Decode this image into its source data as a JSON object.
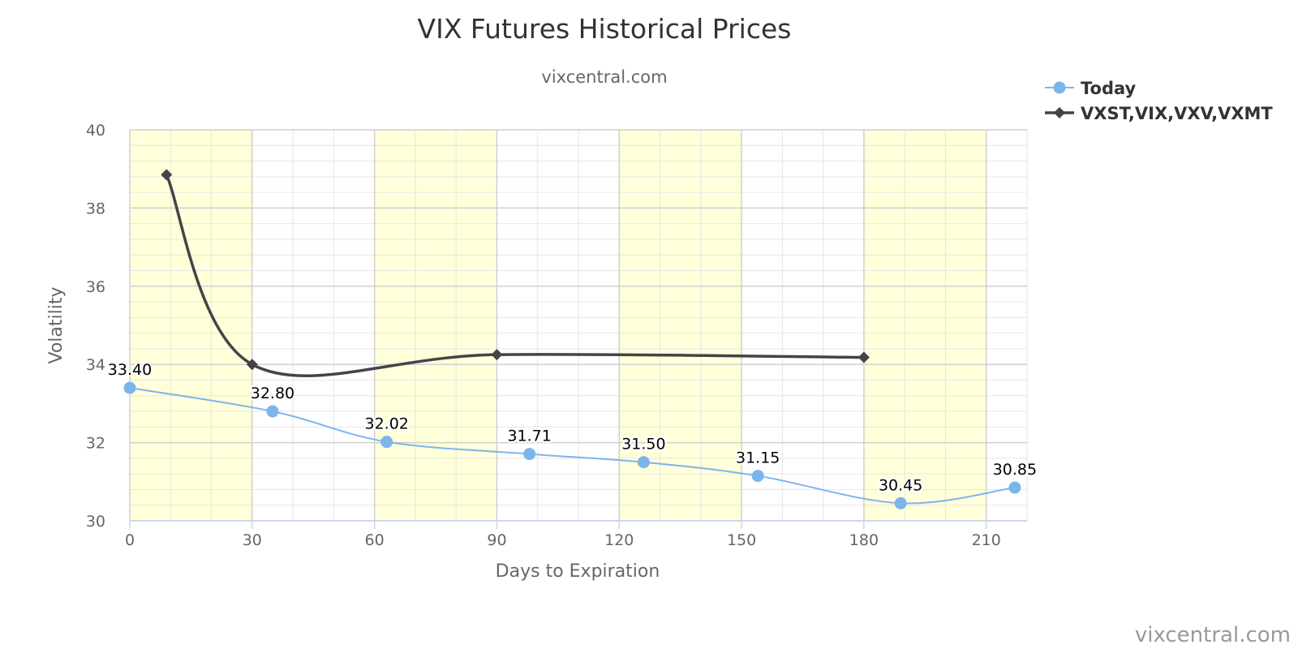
{
  "chart_data": {
    "type": "line",
    "title": "VIX Futures Historical Prices",
    "subtitle": "vixcentral.com",
    "xlabel": "Days to Expiration",
    "ylabel": "Volatility",
    "xlim": [
      0,
      220
    ],
    "ylim": [
      30,
      40
    ],
    "x_ticks": [
      0,
      30,
      60,
      90,
      120,
      150,
      180,
      210
    ],
    "y_ticks": [
      30,
      32,
      34,
      36,
      38,
      40
    ],
    "grid": true,
    "legend_position": "top-right",
    "bands": [
      [
        0,
        30
      ],
      [
        60,
        90
      ],
      [
        120,
        150
      ],
      [
        180,
        210
      ]
    ],
    "band_color": "#ffffd9",
    "series": [
      {
        "name": "Today",
        "color": "#7cb5ec",
        "marker": "circle",
        "x": [
          0,
          35,
          63,
          98,
          126,
          154,
          189,
          217
        ],
        "y": [
          33.4,
          32.8,
          32.02,
          31.71,
          31.5,
          31.15,
          30.45,
          30.85
        ],
        "labels": [
          "33.40",
          "32.80",
          "32.02",
          "31.71",
          "31.50",
          "31.15",
          "30.45",
          "30.85"
        ]
      },
      {
        "name": "VXST,VIX,VXV,VXMT",
        "color": "#434348",
        "marker": "diamond",
        "x": [
          9,
          30,
          90,
          180
        ],
        "y": [
          38.85,
          34.0,
          34.25,
          34.18
        ]
      }
    ],
    "credit": "vixcentral.com"
  }
}
